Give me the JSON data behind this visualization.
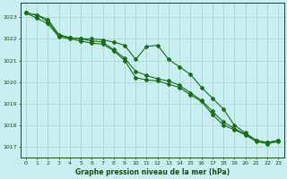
{
  "x": [
    0,
    1,
    2,
    3,
    4,
    5,
    6,
    7,
    8,
    9,
    10,
    11,
    12,
    13,
    14,
    15,
    16,
    17,
    18,
    19,
    20,
    21,
    22,
    23
  ],
  "line_smooth": [
    1023.2,
    1023.1,
    1022.9,
    1022.2,
    1022.05,
    1022.0,
    1021.9,
    1021.85,
    1021.5,
    1021.1,
    1020.5,
    1020.3,
    1020.15,
    1020.05,
    1019.85,
    1019.5,
    1019.15,
    1018.65,
    1018.15,
    1017.85,
    1017.6,
    1017.3,
    1017.2,
    1017.3
  ],
  "line_upper": [
    1023.2,
    1023.1,
    1022.8,
    1022.15,
    1022.05,
    1022.0,
    1022.0,
    1021.95,
    1021.85,
    1021.7,
    1021.05,
    1021.65,
    1021.7,
    1021.05,
    1020.7,
    1020.35,
    1019.75,
    1019.25,
    1018.75,
    1018.0,
    1017.65,
    1017.3,
    1017.2,
    1017.3
  ],
  "line_lower": [
    1023.2,
    1022.95,
    1022.7,
    1022.1,
    1022.0,
    1021.9,
    1021.8,
    1021.75,
    1021.45,
    1021.0,
    1020.2,
    1020.1,
    1020.05,
    1019.9,
    1019.75,
    1019.4,
    1019.1,
    1018.5,
    1018.0,
    1017.8,
    1017.55,
    1017.25,
    1017.15,
    1017.25
  ],
  "line_color": "#1a6b1a",
  "bg_color": "#c8eef0",
  "grid_color": "#a8cece",
  "text_color": "#1a4a1a",
  "xlabel": "Graphe pression niveau de la mer (hPa)",
  "ylim_min": 1016.5,
  "ylim_max": 1023.65,
  "yticks": [
    1017,
    1018,
    1019,
    1020,
    1021,
    1022,
    1023
  ],
  "xticks": [
    0,
    1,
    2,
    3,
    4,
    5,
    6,
    7,
    8,
    9,
    10,
    11,
    12,
    13,
    14,
    15,
    16,
    17,
    18,
    19,
    20,
    21,
    22,
    23
  ]
}
